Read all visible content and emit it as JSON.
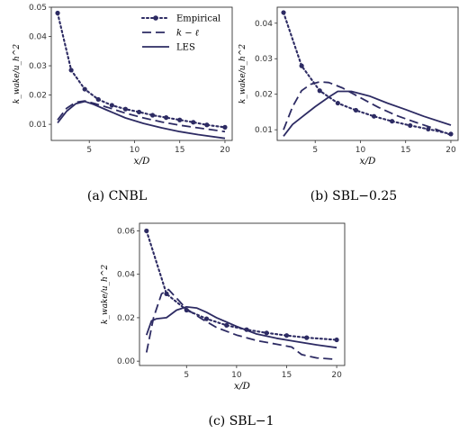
{
  "colors": {
    "series": "#2d2b63",
    "axis": "#333333"
  },
  "chart_data": [
    {
      "id": "cnbl",
      "type": "line",
      "caption": "(a) CNBL",
      "xlabel": "x/D",
      "ylabel": "k_wake/u_h^2",
      "xlim": [
        0.8,
        20.8
      ],
      "ylim": [
        0.0045,
        0.05
      ],
      "xticks": [
        5,
        10,
        15,
        20
      ],
      "yticks": [
        0.01,
        0.02,
        0.03,
        0.04,
        0.05
      ],
      "ytick_labels": [
        "0.01",
        "0.02",
        "0.03",
        "0.04",
        "0.05"
      ],
      "legend": {
        "position": "top-right",
        "labels": [
          "Empirical",
          "k − ℓ",
          "LES"
        ]
      },
      "series": [
        {
          "name": "Empirical",
          "style": "dotdash-markers",
          "x": [
            1.5,
            3,
            4.5,
            6,
            7.5,
            9,
            10.5,
            12,
            13.5,
            15,
            16.5,
            18,
            20
          ],
          "y": [
            0.048,
            0.0285,
            0.022,
            0.0185,
            0.0165,
            0.0152,
            0.0142,
            0.0131,
            0.0123,
            0.0115,
            0.0107,
            0.0098,
            0.009
          ]
        },
        {
          "name": "k − ℓ",
          "style": "dashed",
          "x": [
            1.5,
            2.5,
            3.5,
            4.5,
            5.5,
            7,
            9,
            11,
            13,
            15,
            17,
            20
          ],
          "y": [
            0.0115,
            0.0155,
            0.0175,
            0.018,
            0.0172,
            0.0158,
            0.0138,
            0.0122,
            0.0108,
            0.0097,
            0.0088,
            0.0075
          ]
        },
        {
          "name": "LES",
          "style": "solid",
          "x": [
            1.5,
            2.5,
            3.5,
            4.5,
            5.5,
            7,
            9,
            11,
            13,
            15,
            17,
            20
          ],
          "y": [
            0.0105,
            0.0145,
            0.017,
            0.0178,
            0.0168,
            0.0148,
            0.0122,
            0.0103,
            0.0088,
            0.0075,
            0.0065,
            0.0052
          ]
        }
      ]
    },
    {
      "id": "sbl025",
      "type": "line",
      "caption": "(b) SBL−0.25",
      "xlabel": "x/D",
      "ylabel": "k_wake/u_h^2",
      "xlim": [
        0.8,
        20.8
      ],
      "ylim": [
        0.007,
        0.0445
      ],
      "xticks": [
        5,
        10,
        15,
        20
      ],
      "yticks": [
        0.01,
        0.02,
        0.03,
        0.04
      ],
      "ytick_labels": [
        "0.01",
        "0.02",
        "0.03",
        "0.04"
      ],
      "series": [
        {
          "name": "Empirical",
          "style": "dotdash-markers",
          "x": [
            1.5,
            3.5,
            5.5,
            7.5,
            9.5,
            11.5,
            13.5,
            15.5,
            17.5,
            20
          ],
          "y": [
            0.043,
            0.028,
            0.021,
            0.0175,
            0.0155,
            0.0138,
            0.0124,
            0.0112,
            0.0102,
            0.0088
          ]
        },
        {
          "name": "k − ℓ",
          "style": "dashed",
          "x": [
            1.5,
            2.5,
            3.5,
            4.5,
            5.5,
            6.5,
            8,
            10,
            12,
            14,
            16,
            18,
            20
          ],
          "y": [
            0.01,
            0.0165,
            0.021,
            0.0228,
            0.0235,
            0.0233,
            0.0218,
            0.019,
            0.0163,
            0.014,
            0.0122,
            0.0105,
            0.0085
          ]
        },
        {
          "name": "LES",
          "style": "solid",
          "x": [
            1.5,
            2.5,
            3.5,
            5,
            6.5,
            7.5,
            9,
            11,
            13,
            15,
            17,
            20
          ],
          "y": [
            0.0082,
            0.0115,
            0.0135,
            0.0165,
            0.0192,
            0.0208,
            0.0208,
            0.0195,
            0.0175,
            0.0157,
            0.0138,
            0.0113
          ]
        }
      ]
    },
    {
      "id": "sbl1",
      "type": "line",
      "caption": "(c) SBL−1",
      "xlabel": "x/D",
      "ylabel": "k_wake/u_h^2",
      "xlim": [
        0.3,
        20.8
      ],
      "ylim": [
        -0.002,
        0.0635
      ],
      "xticks": [
        5,
        10,
        15,
        20
      ],
      "yticks": [
        0.0,
        0.02,
        0.04,
        0.06
      ],
      "ytick_labels": [
        "0.00",
        "0.02",
        "0.04",
        "0.06"
      ],
      "series": [
        {
          "name": "Empirical",
          "style": "dotdash-markers",
          "x": [
            1,
            3,
            5,
            7,
            9,
            11,
            13,
            15,
            17,
            20
          ],
          "y": [
            0.06,
            0.031,
            0.0235,
            0.0195,
            0.0165,
            0.0145,
            0.013,
            0.0118,
            0.0108,
            0.0098
          ]
        },
        {
          "name": "k − ℓ",
          "style": "dashed",
          "x": [
            1,
            1.7,
            2.5,
            3.2,
            4,
            5,
            6.5,
            8,
            10,
            12,
            14,
            15.5,
            16.5,
            18,
            20
          ],
          "y": [
            0.004,
            0.02,
            0.031,
            0.033,
            0.029,
            0.024,
            0.0195,
            0.0155,
            0.012,
            0.0095,
            0.0078,
            0.0065,
            0.003,
            0.0015,
            0.0008
          ]
        },
        {
          "name": "LES",
          "style": "solid",
          "x": [
            1,
            1.5,
            2,
            3,
            4,
            5,
            6,
            7,
            8,
            10,
            12,
            14,
            16,
            18,
            20
          ],
          "y": [
            0.012,
            0.0185,
            0.0195,
            0.02,
            0.0235,
            0.025,
            0.0245,
            0.0225,
            0.02,
            0.016,
            0.0125,
            0.0105,
            0.009,
            0.0075,
            0.0062
          ]
        }
      ]
    }
  ]
}
